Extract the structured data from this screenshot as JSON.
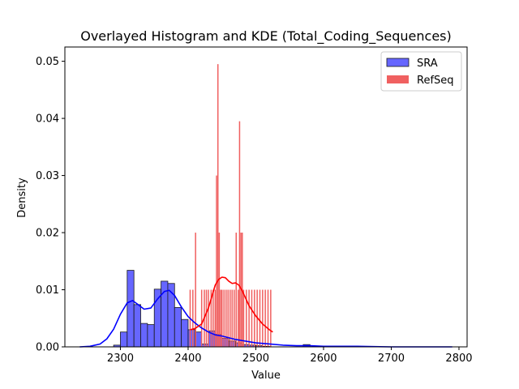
{
  "chart_data": {
    "type": "histogram",
    "title": "Overlayed Histogram and KDE (Total_Coding_Sequences)",
    "xlabel": "Value",
    "ylabel": "Density",
    "xlim": [
      2218,
      2812
    ],
    "ylim": [
      0,
      0.0525
    ],
    "xticks": [
      2300,
      2400,
      2500,
      2600,
      2700,
      2800
    ],
    "xtick_labels": [
      "2300",
      "2400",
      "2500",
      "2600",
      "2700",
      "2800"
    ],
    "yticks": [
      0,
      0.01,
      0.02,
      0.03,
      0.04,
      0.05
    ],
    "ytick_labels": [
      "0.00",
      "0.01",
      "0.02",
      "0.03",
      "0.04",
      "0.05"
    ],
    "grid": false,
    "legend_position": "top-right",
    "series": [
      {
        "name": "SRA",
        "color": "#0000ff",
        "bar_fill": "#6666ff",
        "bins": [
          [
            2290,
            2300,
            0.0003
          ],
          [
            2300,
            2310,
            0.0026
          ],
          [
            2310,
            2320,
            0.0134
          ],
          [
            2320,
            2330,
            0.0074
          ],
          [
            2330,
            2340,
            0.0041
          ],
          [
            2340,
            2350,
            0.0039
          ],
          [
            2350,
            2360,
            0.0101
          ],
          [
            2360,
            2370,
            0.0115
          ],
          [
            2370,
            2380,
            0.0111
          ],
          [
            2380,
            2390,
            0.0069
          ],
          [
            2390,
            2400,
            0.0048
          ],
          [
            2400,
            2410,
            0.003
          ],
          [
            2410,
            2420,
            0.0026
          ],
          [
            2420,
            2430,
            0.0005
          ],
          [
            2430,
            2440,
            0.0028
          ],
          [
            2440,
            2450,
            0.0022
          ],
          [
            2450,
            2460,
            0.0015
          ],
          [
            2460,
            2470,
            0.001
          ],
          [
            2470,
            2480,
            0.0007
          ],
          [
            2480,
            2490,
            0.0004
          ],
          [
            2490,
            2500,
            0.0003
          ],
          [
            2500,
            2510,
            0.0002
          ],
          [
            2510,
            2520,
            0.0001
          ],
          [
            2570,
            2580,
            0.0004
          ]
        ],
        "kde": {
          "x": [
            2240,
            2255,
            2270,
            2280,
            2290,
            2300,
            2310,
            2318,
            2325,
            2335,
            2345,
            2355,
            2365,
            2372,
            2380,
            2390,
            2400,
            2410,
            2420,
            2430,
            2440,
            2450,
            2460,
            2470,
            2480,
            2490,
            2500,
            2520,
            2540,
            2560,
            2580,
            2600,
            2650,
            2700,
            2750,
            2790
          ],
          "y": [
            0.0,
            0.0001,
            0.0005,
            0.0014,
            0.0031,
            0.0057,
            0.0077,
            0.0081,
            0.0075,
            0.0066,
            0.0068,
            0.0084,
            0.0097,
            0.0099,
            0.009,
            0.007,
            0.0053,
            0.0042,
            0.0033,
            0.0026,
            0.0021,
            0.0019,
            0.0016,
            0.0013,
            0.0011,
            0.0009,
            0.0007,
            0.0005,
            0.0003,
            0.0002,
            0.0002,
            0.0001,
            0.0001,
            0.0,
            0.0,
            0.0
          ]
        }
      },
      {
        "name": "RefSeq",
        "color": "#ff0000",
        "bar_fill": "#f06060",
        "bars": [
          [
            2403,
            0.01
          ],
          [
            2407,
            0.01
          ],
          [
            2411,
            0.02
          ],
          [
            2420,
            0.01
          ],
          [
            2424,
            0.01
          ],
          [
            2427,
            0.01
          ],
          [
            2430,
            0.01
          ],
          [
            2434,
            0.01
          ],
          [
            2437,
            0.01
          ],
          [
            2440,
            0.01
          ],
          [
            2442,
            0.03
          ],
          [
            2444,
            0.0495
          ],
          [
            2446,
            0.02
          ],
          [
            2448,
            0.01
          ],
          [
            2450,
            0.01
          ],
          [
            2453,
            0.01
          ],
          [
            2456,
            0.01
          ],
          [
            2459,
            0.01
          ],
          [
            2462,
            0.01
          ],
          [
            2465,
            0.01
          ],
          [
            2468,
            0.01
          ],
          [
            2471,
            0.02
          ],
          [
            2474,
            0.01
          ],
          [
            2476,
            0.0395
          ],
          [
            2478,
            0.02
          ],
          [
            2480,
            0.02
          ],
          [
            2482,
            0.01
          ],
          [
            2486,
            0.01
          ],
          [
            2490,
            0.01
          ],
          [
            2494,
            0.01
          ],
          [
            2498,
            0.01
          ],
          [
            2502,
            0.01
          ],
          [
            2506,
            0.01
          ],
          [
            2510,
            0.01
          ],
          [
            2514,
            0.01
          ],
          [
            2518,
            0.01
          ],
          [
            2522,
            0.01
          ]
        ],
        "kde": {
          "x": [
            2403,
            2410,
            2420,
            2430,
            2440,
            2445,
            2450,
            2455,
            2460,
            2465,
            2470,
            2475,
            2480,
            2485,
            2490,
            2500,
            2510,
            2520,
            2525
          ],
          "y": [
            0.003,
            0.0032,
            0.004,
            0.0068,
            0.0108,
            0.0118,
            0.0122,
            0.0121,
            0.0115,
            0.0111,
            0.0112,
            0.0108,
            0.0098,
            0.0085,
            0.0072,
            0.0054,
            0.004,
            0.003,
            0.0026
          ]
        }
      }
    ]
  }
}
